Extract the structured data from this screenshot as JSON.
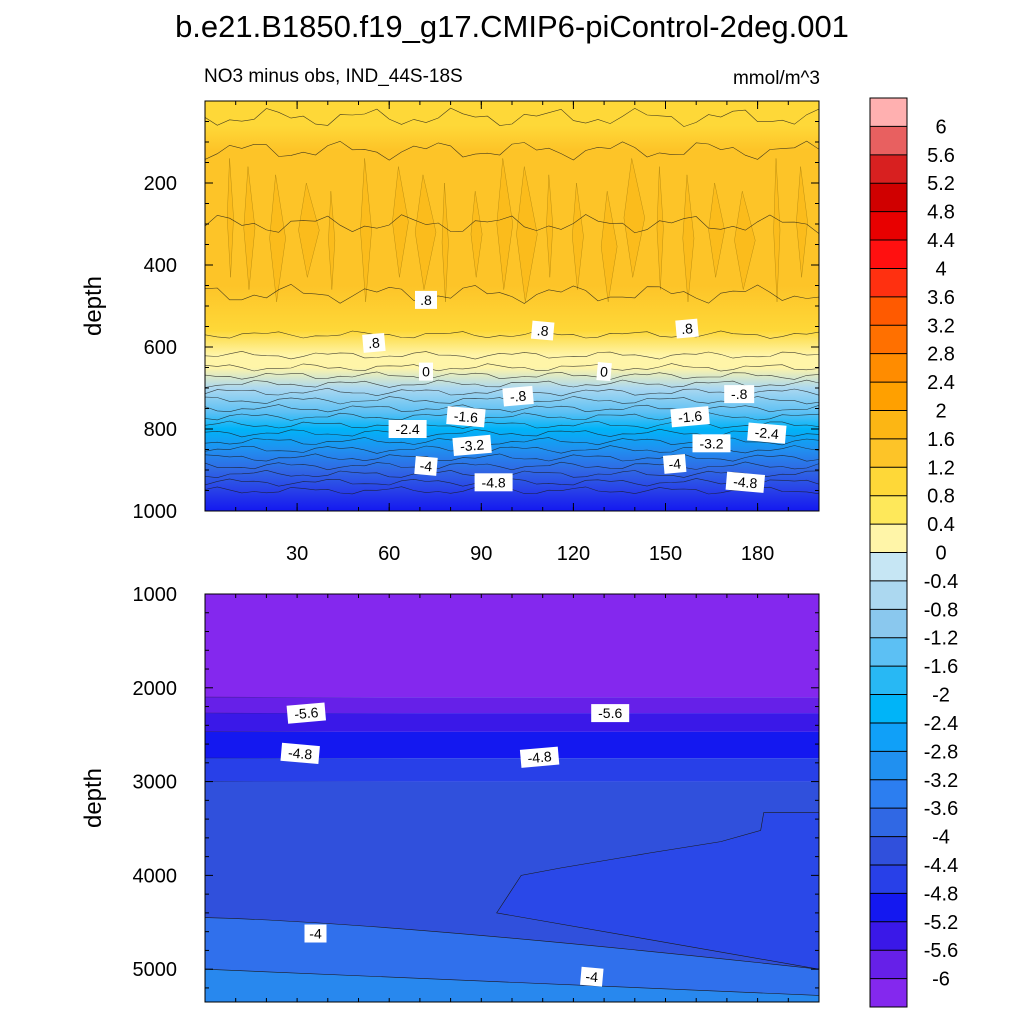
{
  "title": "b.e21.B1850.f19_g17.CMIP6-piControl-2deg.001",
  "chart_data": [
    {
      "type": "heatmap",
      "subtitle_left": "NO3 minus obs, IND_44S-18S",
      "subtitle_right": "mmol/m^3",
      "xlabel": "",
      "ylabel": "depth",
      "xlim": [
        0,
        200
      ],
      "ylim": [
        1000,
        0
      ],
      "xticks": [
        30,
        60,
        90,
        120,
        150,
        180
      ],
      "xtick_labels": [
        "30",
        "60",
        "90",
        "120",
        "150",
        "180"
      ],
      "yticks": [
        200,
        400,
        600,
        800,
        1000
      ],
      "ytick_labels": [
        "200",
        "400",
        "600",
        "800",
        "1000"
      ],
      "depth_profile": [
        {
          "depth": 0,
          "value": 0.9
        },
        {
          "depth": 60,
          "value": 1.1
        },
        {
          "depth": 120,
          "value": 1.3
        },
        {
          "depth": 300,
          "value": 1.5
        },
        {
          "depth": 450,
          "value": 1.2
        },
        {
          "depth": 560,
          "value": 0.8
        },
        {
          "depth": 620,
          "value": 0.3
        },
        {
          "depth": 650,
          "value": 0.0
        },
        {
          "depth": 700,
          "value": -0.8
        },
        {
          "depth": 760,
          "value": -1.6
        },
        {
          "depth": 800,
          "value": -2.4
        },
        {
          "depth": 850,
          "value": -3.2
        },
        {
          "depth": 900,
          "value": -4.0
        },
        {
          "depth": 950,
          "value": -4.8
        },
        {
          "depth": 1000,
          "value": -5.2
        }
      ],
      "contour_labels": [
        {
          "text": ".8",
          "x": 55,
          "depth": 590
        },
        {
          "text": ".8",
          "x": 72,
          "depth": 485
        },
        {
          "text": ".8",
          "x": 110,
          "depth": 560
        },
        {
          "text": ".8",
          "x": 157,
          "depth": 555
        },
        {
          "text": "0",
          "x": 72,
          "depth": 660
        },
        {
          "text": "0",
          "x": 130,
          "depth": 660
        },
        {
          "text": "-.8",
          "x": 102,
          "depth": 720
        },
        {
          "text": "-.8",
          "x": 174,
          "depth": 715
        },
        {
          "text": "-1.6",
          "x": 85,
          "depth": 770
        },
        {
          "text": "-1.6",
          "x": 158,
          "depth": 770
        },
        {
          "text": "-2.4",
          "x": 66,
          "depth": 800
        },
        {
          "text": "-2.4",
          "x": 183,
          "depth": 810
        },
        {
          "text": "-3.2",
          "x": 87,
          "depth": 840
        },
        {
          "text": "-3.2",
          "x": 165,
          "depth": 835
        },
        {
          "text": "-4",
          "x": 72,
          "depth": 890
        },
        {
          "text": "-4",
          "x": 153,
          "depth": 885
        },
        {
          "text": "-4.8",
          "x": 94,
          "depth": 930
        },
        {
          "text": "-4.8",
          "x": 176,
          "depth": 930
        }
      ]
    },
    {
      "type": "heatmap",
      "xlabel": "",
      "ylabel": "depth",
      "xlim": [
        0,
        200
      ],
      "ylim": [
        5350,
        1000
      ],
      "yticks": [
        1000,
        2000,
        3000,
        4000,
        5000
      ],
      "ytick_labels": [
        "1000",
        "2000",
        "3000",
        "4000",
        "5000"
      ],
      "bands": [
        {
          "from": 1000,
          "to": 2100,
          "value": -6.2
        },
        {
          "from": 2100,
          "to": 2270,
          "value": -5.8
        },
        {
          "from": 2270,
          "to": 2470,
          "value": -5.4
        },
        {
          "from": 2470,
          "to": 2750,
          "value": -5.0
        },
        {
          "from": 2750,
          "to": 3000,
          "value": -4.6
        },
        {
          "from": 3000,
          "to": 5350,
          "value": -4.2
        }
      ],
      "contour_labels": [
        {
          "text": "-5.6",
          "x": 33,
          "depth": 2270
        },
        {
          "text": "-5.6",
          "x": 132,
          "depth": 2270
        },
        {
          "text": "-4.8",
          "x": 31,
          "depth": 2700
        },
        {
          "text": "-4.8",
          "x": 109,
          "depth": 2740
        },
        {
          "text": "-4",
          "x": 36,
          "depth": 4620
        },
        {
          "text": "-4",
          "x": 126,
          "depth": 5080
        }
      ]
    }
  ],
  "colorbar": {
    "levels": [
      "6",
      "5.6",
      "5.2",
      "4.8",
      "4.4",
      "4",
      "3.6",
      "3.2",
      "2.8",
      "2.4",
      "2",
      "1.6",
      "1.2",
      "0.8",
      "0.4",
      "0",
      "-0.4",
      "-0.8",
      "-1.2",
      "-1.6",
      "-2",
      "-2.4",
      "-2.8",
      "-3.2",
      "-3.6",
      "-4",
      "-4.4",
      "-4.8",
      "-5.2",
      "-5.6",
      "-6"
    ],
    "colors": [
      "#ffb0b0",
      "#e86060",
      "#d82020",
      "#d00000",
      "#e80000",
      "#ff1010",
      "#ff3010",
      "#ff5a00",
      "#ff7000",
      "#ff8c00",
      "#ffa000",
      "#fcb614",
      "#fdc428",
      "#fed838",
      "#fee85a",
      "#fff5a8",
      "#c6e6f4",
      "#acd8f0",
      "#8ac8ee",
      "#5cc0f4",
      "#28b8f4",
      "#00b4f8",
      "#10a0f8",
      "#2090f0",
      "#2c7ef0",
      "#3068e4",
      "#3050dc",
      "#2840e8",
      "#1418f0",
      "#3a18e8",
      "#6620e8",
      "#8428ee"
    ]
  }
}
